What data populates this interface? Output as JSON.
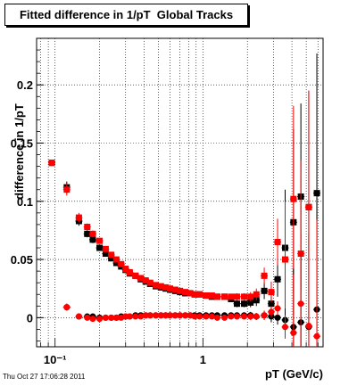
{
  "header": {
    "title": "Fitted difference in 1/pT  Global Tracks",
    "timestamp": "Thu Oct 27 17:06:28 2011"
  },
  "chart_data": {
    "type": "scatter",
    "title": "Fitted difference in 1/pT  Global Tracks",
    "xlabel": "pT (GeV/c)",
    "ylabel": "difference in 1/pT",
    "xscale": "log",
    "xlim": [
      0.075,
      6.5
    ],
    "ylim": [
      -0.025,
      0.24
    ],
    "xticks": [
      {
        "value": 0.1,
        "label": "10⁻¹"
      },
      {
        "value": 1,
        "label": "1"
      }
    ],
    "yticks": [
      0,
      0.05,
      0.1,
      0.15,
      0.2
    ],
    "ytick_labels": [
      "0",
      "0.05",
      "0.1",
      "0.15",
      "0.2"
    ],
    "grid": true,
    "series": [
      {
        "name": "",
        "color": "#000000",
        "marker": "square",
        "points": [
          [
            0.095,
            0.133,
            0.0
          ],
          [
            0.12,
            0.112,
            0.005
          ],
          [
            0.145,
            0.083,
            0.004
          ],
          [
            0.165,
            0.072,
            0.003
          ],
          [
            0.18,
            0.067,
            0.003
          ],
          [
            0.2,
            0.06,
            0.002
          ],
          [
            0.22,
            0.055,
            0.002
          ],
          [
            0.24,
            0.051,
            0.002
          ],
          [
            0.26,
            0.047,
            0.002
          ],
          [
            0.28,
            0.044,
            0.002
          ],
          [
            0.3,
            0.041,
            0.001
          ],
          [
            0.32,
            0.038,
            0.001
          ],
          [
            0.35,
            0.036,
            0.001
          ],
          [
            0.38,
            0.033,
            0.001
          ],
          [
            0.41,
            0.031,
            0.001
          ],
          [
            0.44,
            0.029,
            0.001
          ],
          [
            0.48,
            0.027,
            0.001
          ],
          [
            0.52,
            0.026,
            0.001
          ],
          [
            0.56,
            0.025,
            0.001
          ],
          [
            0.6,
            0.024,
            0.001
          ],
          [
            0.65,
            0.023,
            0.001
          ],
          [
            0.7,
            0.022,
            0.001
          ],
          [
            0.76,
            0.021,
            0.001
          ],
          [
            0.82,
            0.021,
            0.001
          ],
          [
            0.88,
            0.02,
            0.001
          ],
          [
            0.95,
            0.02,
            0.001
          ],
          [
            1.05,
            0.019,
            0.001
          ],
          [
            1.15,
            0.018,
            0.001
          ],
          [
            1.25,
            0.018,
            0.002
          ],
          [
            1.4,
            0.018,
            0.002
          ],
          [
            1.55,
            0.016,
            0.002
          ],
          [
            1.7,
            0.012,
            0.003
          ],
          [
            1.9,
            0.012,
            0.003
          ],
          [
            2.1,
            0.013,
            0.004
          ],
          [
            2.3,
            0.015,
            0.005
          ],
          [
            2.6,
            0.023,
            0.007
          ],
          [
            2.9,
            0.012,
            0.009
          ],
          [
            3.2,
            0.033,
            0.015
          ],
          [
            3.6,
            0.06,
            0.05
          ],
          [
            4.1,
            0.082,
            0.08
          ],
          [
            4.6,
            0.104,
            0.08
          ],
          [
            5.2,
            0.095,
            0.1
          ],
          [
            5.9,
            0.107,
            0.12
          ]
        ]
      },
      {
        "name": "",
        "color": "#ff0000",
        "marker": "square",
        "points": [
          [
            0.095,
            0.133,
            0.0
          ],
          [
            0.12,
            0.11,
            0.005
          ],
          [
            0.145,
            0.086,
            0.004
          ],
          [
            0.165,
            0.078,
            0.003
          ],
          [
            0.18,
            0.072,
            0.003
          ],
          [
            0.2,
            0.066,
            0.002
          ],
          [
            0.22,
            0.059,
            0.002
          ],
          [
            0.24,
            0.054,
            0.002
          ],
          [
            0.26,
            0.05,
            0.002
          ],
          [
            0.28,
            0.046,
            0.002
          ],
          [
            0.3,
            0.042,
            0.001
          ],
          [
            0.32,
            0.039,
            0.001
          ],
          [
            0.35,
            0.036,
            0.001
          ],
          [
            0.38,
            0.034,
            0.001
          ],
          [
            0.41,
            0.032,
            0.001
          ],
          [
            0.44,
            0.03,
            0.001
          ],
          [
            0.48,
            0.028,
            0.001
          ],
          [
            0.52,
            0.027,
            0.001
          ],
          [
            0.56,
            0.026,
            0.001
          ],
          [
            0.6,
            0.025,
            0.001
          ],
          [
            0.65,
            0.024,
            0.001
          ],
          [
            0.7,
            0.023,
            0.001
          ],
          [
            0.76,
            0.022,
            0.001
          ],
          [
            0.82,
            0.021,
            0.001
          ],
          [
            0.88,
            0.02,
            0.001
          ],
          [
            0.95,
            0.02,
            0.001
          ],
          [
            1.05,
            0.019,
            0.001
          ],
          [
            1.15,
            0.019,
            0.001
          ],
          [
            1.25,
            0.018,
            0.002
          ],
          [
            1.4,
            0.018,
            0.002
          ],
          [
            1.55,
            0.018,
            0.002
          ],
          [
            1.7,
            0.018,
            0.003
          ],
          [
            1.9,
            0.018,
            0.003
          ],
          [
            2.1,
            0.018,
            0.004
          ],
          [
            2.3,
            0.02,
            0.005
          ],
          [
            2.6,
            0.036,
            0.007
          ],
          [
            2.9,
            0.022,
            0.009
          ],
          [
            3.2,
            0.065,
            0.02
          ],
          [
            3.6,
            0.05,
            0.05
          ],
          [
            4.1,
            0.102,
            0.08
          ],
          [
            4.6,
            0.055,
            0.08
          ],
          [
            5.2,
            0.095,
            0.1
          ]
        ]
      },
      {
        "name": "",
        "color": "#000000",
        "marker": "circle",
        "points": [
          [
            0.12,
            0.009,
            0.003
          ],
          [
            0.145,
            0.001,
            0.002
          ],
          [
            0.165,
            0.001,
            0.002
          ],
          [
            0.18,
            0.001,
            0.002
          ],
          [
            0.2,
            0.0,
            0.001
          ],
          [
            0.22,
            0.0,
            0.001
          ],
          [
            0.24,
            0.0,
            0.001
          ],
          [
            0.26,
            0.0,
            0.001
          ],
          [
            0.28,
            0.001,
            0.001
          ],
          [
            0.3,
            0.001,
            0.001
          ],
          [
            0.32,
            0.001,
            0.001
          ],
          [
            0.35,
            0.002,
            0.001
          ],
          [
            0.38,
            0.002,
            0.001
          ],
          [
            0.41,
            0.002,
            0.001
          ],
          [
            0.44,
            0.002,
            0.001
          ],
          [
            0.48,
            0.002,
            0.001
          ],
          [
            0.52,
            0.002,
            0.001
          ],
          [
            0.56,
            0.002,
            0.001
          ],
          [
            0.6,
            0.002,
            0.001
          ],
          [
            0.65,
            0.002,
            0.001
          ],
          [
            0.7,
            0.002,
            0.001
          ],
          [
            0.76,
            0.002,
            0.001
          ],
          [
            0.82,
            0.002,
            0.001
          ],
          [
            0.88,
            0.002,
            0.001
          ],
          [
            0.95,
            0.002,
            0.001
          ],
          [
            1.05,
            0.002,
            0.001
          ],
          [
            1.15,
            0.002,
            0.001
          ],
          [
            1.25,
            0.002,
            0.001
          ],
          [
            1.4,
            0.002,
            0.001
          ],
          [
            1.55,
            0.002,
            0.002
          ],
          [
            1.7,
            0.002,
            0.002
          ],
          [
            1.9,
            0.002,
            0.002
          ],
          [
            2.1,
            0.002,
            0.003
          ],
          [
            2.3,
            0.001,
            0.003
          ],
          [
            2.6,
            0.002,
            0.004
          ],
          [
            2.9,
            0.001,
            0.005
          ],
          [
            3.2,
            0.0,
            0.006
          ],
          [
            3.6,
            -0.002,
            0.01
          ],
          [
            4.1,
            -0.008,
            0.05
          ],
          [
            4.6,
            -0.004,
            0.06
          ],
          [
            5.2,
            -0.008,
            0.08
          ],
          [
            5.9,
            0.007,
            0.1
          ]
        ]
      },
      {
        "name": "",
        "color": "#ff0000",
        "marker": "circle",
        "points": [
          [
            0.095,
            0.133,
            0.0
          ],
          [
            0.12,
            0.009,
            0.003
          ],
          [
            0.145,
            0.001,
            0.002
          ],
          [
            0.165,
            0.0,
            0.002
          ],
          [
            0.18,
            -0.001,
            0.002
          ],
          [
            0.2,
            -0.001,
            0.001
          ],
          [
            0.22,
            0.0,
            0.001
          ],
          [
            0.24,
            0.0,
            0.001
          ],
          [
            0.26,
            0.0,
            0.001
          ],
          [
            0.28,
            0.0,
            0.001
          ],
          [
            0.3,
            0.001,
            0.001
          ],
          [
            0.32,
            0.001,
            0.001
          ],
          [
            0.35,
            0.001,
            0.001
          ],
          [
            0.38,
            0.001,
            0.001
          ],
          [
            0.41,
            0.002,
            0.001
          ],
          [
            0.44,
            0.002,
            0.001
          ],
          [
            0.48,
            0.002,
            0.001
          ],
          [
            0.52,
            0.002,
            0.001
          ],
          [
            0.56,
            0.002,
            0.001
          ],
          [
            0.6,
            0.002,
            0.001
          ],
          [
            0.65,
            0.002,
            0.001
          ],
          [
            0.7,
            0.002,
            0.001
          ],
          [
            0.76,
            0.002,
            0.001
          ],
          [
            0.82,
            0.002,
            0.001
          ],
          [
            0.88,
            0.001,
            0.001
          ],
          [
            0.95,
            0.001,
            0.001
          ],
          [
            1.05,
            0.001,
            0.001
          ],
          [
            1.15,
            0.001,
            0.001
          ],
          [
            1.25,
            0.0,
            0.001
          ],
          [
            1.4,
            0.0,
            0.001
          ],
          [
            1.55,
            0.001,
            0.002
          ],
          [
            1.7,
            0.001,
            0.002
          ],
          [
            1.9,
            0.001,
            0.002
          ],
          [
            2.1,
            0.001,
            0.003
          ],
          [
            2.3,
            0.001,
            0.003
          ],
          [
            2.6,
            0.002,
            0.004
          ],
          [
            2.9,
            0.005,
            0.005
          ],
          [
            3.2,
            0.008,
            0.006
          ],
          [
            3.6,
            -0.008,
            0.01
          ],
          [
            4.1,
            -0.013,
            0.05
          ],
          [
            4.6,
            0.012,
            0.06
          ],
          [
            5.2,
            -0.007,
            0.08
          ],
          [
            5.9,
            -0.016,
            0.1
          ]
        ]
      }
    ]
  }
}
